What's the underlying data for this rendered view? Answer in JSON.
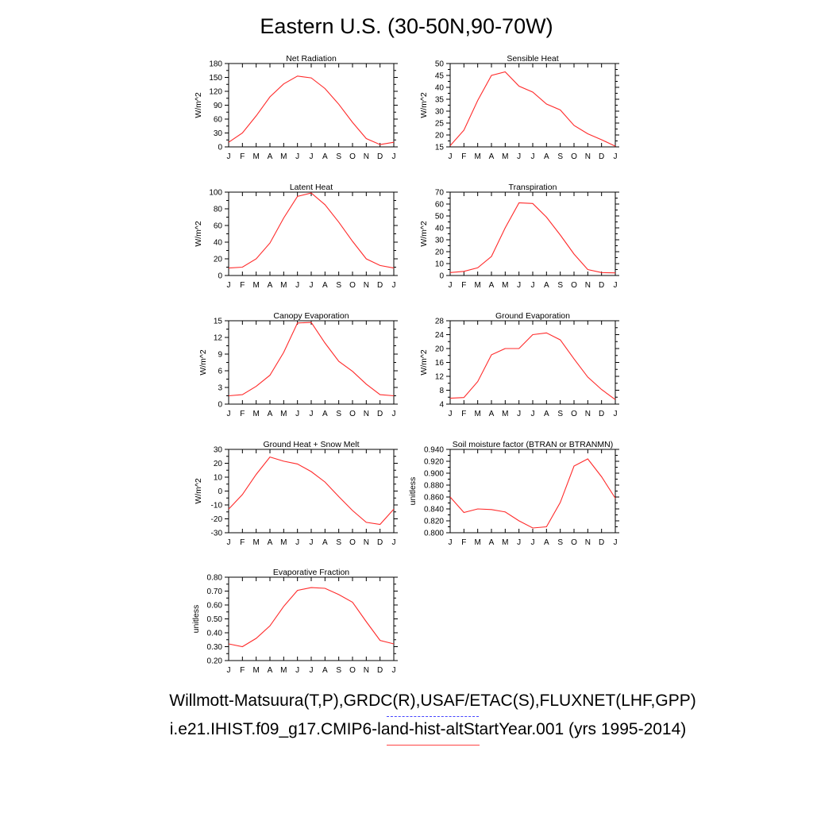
{
  "title": "Eastern U.S. (30-50N,90-70W)",
  "footer": {
    "observations": "Willmott-Matsuura(T,P),GRDC(R),USAF/ETAC(S),FLUXNET(LHF,GPP)",
    "model": "i.e21.IHIST.f09_g17.CMIP6-land-hist-altStartYear.001 (yrs 1995-2014)",
    "observations_line_color": "#4444ff",
    "model_line_color": "#ff2a2a"
  },
  "chart_data": [
    {
      "type": "line",
      "title": "Net Radiation",
      "ylabel": "W/m^2",
      "ylim": [
        0,
        180
      ],
      "yticks": [
        "0",
        "30",
        "60",
        "90",
        "120",
        "150",
        "180"
      ],
      "categories": [
        "J",
        "F",
        "M",
        "A",
        "M",
        "J",
        "J",
        "A",
        "S",
        "O",
        "N",
        "D",
        "J"
      ],
      "series": [
        {
          "values": [
            10,
            30,
            67,
            108,
            136,
            153,
            149,
            126,
            92,
            53,
            18,
            5,
            10
          ]
        }
      ]
    },
    {
      "type": "line",
      "title": "Sensible Heat",
      "ylabel": "W/m^2",
      "ylim": [
        15,
        50
      ],
      "yticks": [
        "15",
        "20",
        "25",
        "30",
        "35",
        "40",
        "45",
        "50"
      ],
      "categories": [
        "J",
        "F",
        "M",
        "A",
        "M",
        "J",
        "J",
        "A",
        "S",
        "O",
        "N",
        "D",
        "J"
      ],
      "series": [
        {
          "values": [
            15.5,
            22,
            34.5,
            45,
            46.5,
            40.5,
            38,
            33,
            30.5,
            24,
            20.5,
            18,
            15.3
          ]
        }
      ]
    },
    {
      "type": "line",
      "title": "Latent Heat",
      "ylabel": "W/m^2",
      "ylim": [
        0,
        100
      ],
      "yticks": [
        "0",
        "20",
        "40",
        "60",
        "80",
        "100"
      ],
      "categories": [
        "J",
        "F",
        "M",
        "A",
        "M",
        "J",
        "J",
        "A",
        "S",
        "O",
        "N",
        "D",
        "J"
      ],
      "series": [
        {
          "values": [
            9,
            10,
            20,
            39,
            69,
            95,
            99,
            85,
            64,
            41,
            20,
            12,
            9
          ]
        }
      ]
    },
    {
      "type": "line",
      "title": "Transpiration",
      "ylabel": "W/m^2",
      "ylim": [
        0,
        70
      ],
      "yticks": [
        "0",
        "10",
        "20",
        "30",
        "40",
        "50",
        "60",
        "70"
      ],
      "categories": [
        "J",
        "F",
        "M",
        "A",
        "M",
        "J",
        "J",
        "A",
        "S",
        "O",
        "N",
        "D",
        "J"
      ],
      "series": [
        {
          "values": [
            2.5,
            3.5,
            6.5,
            16,
            40,
            61,
            60.5,
            49,
            34,
            18,
            5,
            2.5,
            2.2
          ]
        }
      ]
    },
    {
      "type": "line",
      "title": "Canopy Evaporation",
      "ylabel": "W/m^2",
      "ylim": [
        0,
        15
      ],
      "yticks": [
        "0",
        "3",
        "6",
        "9",
        "12",
        "15"
      ],
      "categories": [
        "J",
        "F",
        "M",
        "A",
        "M",
        "J",
        "J",
        "A",
        "S",
        "O",
        "N",
        "D",
        "J"
      ],
      "series": [
        {
          "values": [
            1.5,
            1.7,
            3.2,
            5.2,
            9.3,
            14.6,
            14.7,
            11,
            7.7,
            5.9,
            3.6,
            1.7,
            1.5
          ]
        }
      ]
    },
    {
      "type": "line",
      "title": "Ground Evaporation",
      "ylabel": "W/m^2",
      "ylim": [
        4,
        28
      ],
      "yticks": [
        "4",
        "8",
        "12",
        "16",
        "20",
        "24",
        "28"
      ],
      "categories": [
        "J",
        "F",
        "M",
        "A",
        "M",
        "J",
        "J",
        "A",
        "S",
        "O",
        "N",
        "D",
        "J"
      ],
      "series": [
        {
          "values": [
            5.7,
            5.9,
            10.5,
            18.2,
            20,
            20,
            24,
            24.5,
            22.5,
            17,
            11.8,
            8.2,
            5.3
          ]
        }
      ]
    },
    {
      "type": "line",
      "title": "Ground Heat + Snow Melt",
      "ylabel": "W/m^2",
      "ylim": [
        -30,
        30
      ],
      "yticks": [
        "-30",
        "-20",
        "-10",
        "0",
        "10",
        "20",
        "30"
      ],
      "categories": [
        "J",
        "F",
        "M",
        "A",
        "M",
        "J",
        "J",
        "A",
        "S",
        "O",
        "N",
        "D",
        "J"
      ],
      "series": [
        {
          "values": [
            -13,
            -2.5,
            12,
            24.5,
            21.5,
            19.5,
            14,
            6.5,
            -4,
            -14,
            -22.5,
            -24,
            -13
          ]
        }
      ]
    },
    {
      "type": "line",
      "title": "Soil moisture factor (BTRAN or BTRANMN)",
      "ylabel": "unitless",
      "ylim": [
        0.8,
        0.94
      ],
      "yticks": [
        "0.800",
        "0.820",
        "0.840",
        "0.860",
        "0.880",
        "0.900",
        "0.920",
        "0.940"
      ],
      "categories": [
        "J",
        "F",
        "M",
        "A",
        "M",
        "J",
        "J",
        "A",
        "S",
        "O",
        "N",
        "D",
        "J"
      ],
      "series": [
        {
          "values": [
            0.86,
            0.834,
            0.84,
            0.839,
            0.835,
            0.82,
            0.808,
            0.81,
            0.851,
            0.912,
            0.924,
            0.894,
            0.858
          ]
        }
      ]
    },
    {
      "type": "line",
      "title": "Evaporative Fraction",
      "ylabel": "unitless",
      "ylim": [
        0.2,
        0.8
      ],
      "yticks": [
        "0.20",
        "0.30",
        "0.40",
        "0.50",
        "0.60",
        "0.70",
        "0.80"
      ],
      "categories": [
        "J",
        "F",
        "M",
        "A",
        "M",
        "J",
        "J",
        "A",
        "S",
        "O",
        "N",
        "D",
        "J"
      ],
      "series": [
        {
          "values": [
            0.32,
            0.3,
            0.36,
            0.45,
            0.59,
            0.705,
            0.725,
            0.72,
            0.675,
            0.62,
            0.48,
            0.345,
            0.32
          ]
        }
      ]
    }
  ]
}
